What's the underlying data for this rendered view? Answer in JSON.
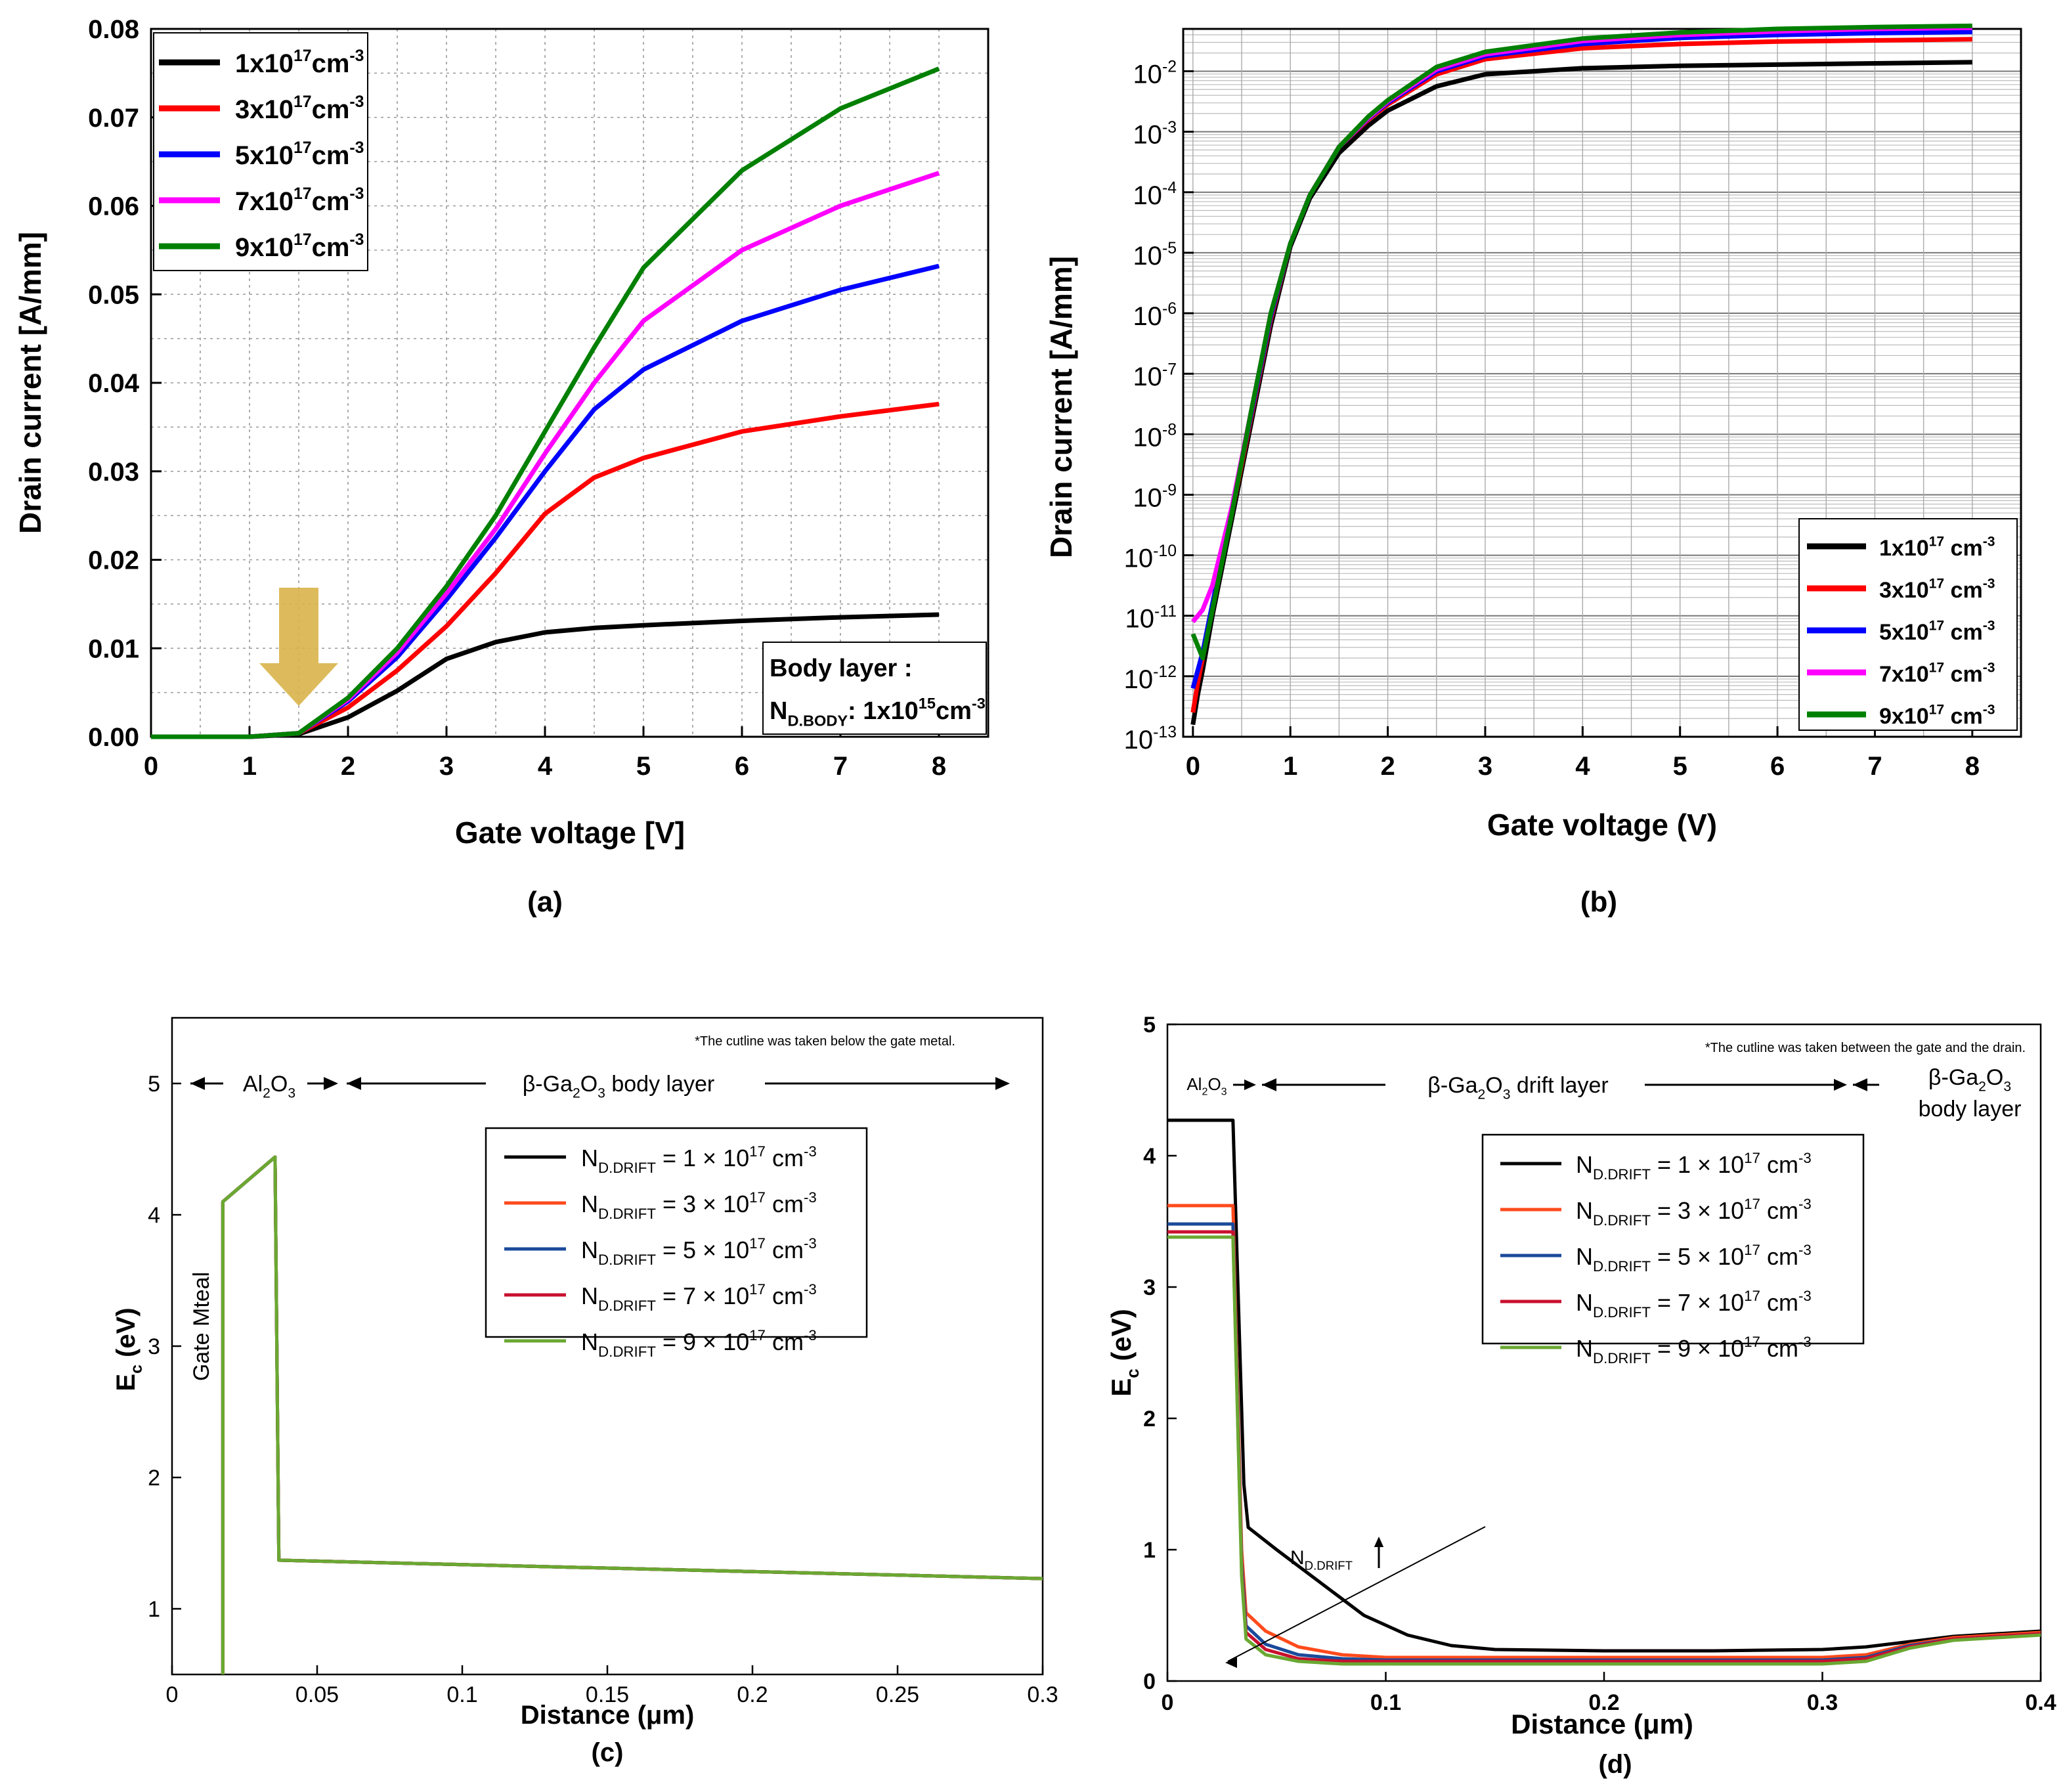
{
  "chart_data": [
    {
      "id": "a",
      "type": "line",
      "caption": "(a)",
      "xlabel": "Gate voltage [V]",
      "ylabel": "Drain current [A/mm]",
      "xlim": [
        0,
        8.5
      ],
      "ylim": [
        0,
        0.08
      ],
      "xticks": [
        "0",
        "1",
        "2",
        "3",
        "4",
        "5",
        "6",
        "7",
        "8"
      ],
      "yticks": [
        "0.00",
        "0.01",
        "0.02",
        "0.03",
        "0.04",
        "0.05",
        "0.06",
        "0.07",
        "0.08"
      ],
      "grid": true,
      "legend_position": "top-left",
      "x": [
        0,
        1,
        1.5,
        2,
        2.5,
        3,
        3.5,
        4,
        4.5,
        5,
        6,
        7,
        8
      ],
      "series": [
        {
          "name": "1x10",
          "sup": "17",
          "unit": "cm",
          "unit_sup": "-3",
          "color": "#000000",
          "values": [
            0,
            0,
            0.0003,
            0.0022,
            0.0052,
            0.0088,
            0.0107,
            0.0118,
            0.0123,
            0.0126,
            0.0131,
            0.0135,
            0.0138
          ]
        },
        {
          "name": "3x10",
          "sup": "17",
          "unit": "cm",
          "unit_sup": "-3",
          "color": "#ff0000",
          "values": [
            0,
            0,
            0.0004,
            0.0033,
            0.0075,
            0.0125,
            0.0185,
            0.0252,
            0.0293,
            0.0315,
            0.0345,
            0.0362,
            0.0376
          ]
        },
        {
          "name": "5x10",
          "sup": "17",
          "unit": "cm",
          "unit_sup": "-3",
          "color": "#0000ff",
          "values": [
            0,
            0,
            0.0004,
            0.004,
            0.009,
            0.0155,
            0.0225,
            0.03,
            0.037,
            0.0415,
            0.047,
            0.0505,
            0.0532
          ]
        },
        {
          "name": "7x10",
          "sup": "17",
          "unit": "cm",
          "unit_sup": "-3",
          "color": "#ff00ff",
          "values": [
            0,
            0,
            0.0004,
            0.0042,
            0.0095,
            0.0162,
            0.0235,
            0.032,
            0.04,
            0.047,
            0.055,
            0.06,
            0.0637
          ]
        },
        {
          "name": "9x10",
          "sup": "17",
          "unit": "cm",
          "unit_sup": "-3",
          "color": "#008000",
          "values": [
            0,
            0,
            0.0004,
            0.0044,
            0.01,
            0.017,
            0.025,
            0.0345,
            0.044,
            0.053,
            0.064,
            0.071,
            0.0755
          ]
        }
      ],
      "annotation_box": {
        "line1": "Body layer :",
        "n": "N",
        "n_sub": "D.BODY",
        "mid": ": 1x10",
        "sup": "15",
        "unit": "cm",
        "unit_sup": "-3"
      },
      "arrow_color": "#d9b44a"
    },
    {
      "id": "b",
      "type": "line",
      "yscale": "log",
      "caption": "(b)",
      "xlabel": "Gate voltage (V)",
      "ylabel": "Drain current [A/mm]",
      "xlim": [
        -0.1,
        8.5
      ],
      "ylim_exp": [
        -13,
        -1.3
      ],
      "xticks": [
        "0",
        "1",
        "2",
        "3",
        "4",
        "5",
        "6",
        "7",
        "8"
      ],
      "ytick_exponents": [
        "-13",
        "-12",
        "-11",
        "-10",
        "-9",
        "-8",
        "-7",
        "-6",
        "-5",
        "-4",
        "-3",
        "-2"
      ],
      "ytick_base": "10",
      "grid": true,
      "legend_position": "bottom-right",
      "x": [
        0,
        0.05,
        0.1,
        0.2,
        0.4,
        0.6,
        0.8,
        1,
        1.2,
        1.5,
        1.8,
        2,
        2.5,
        3,
        4,
        5,
        6,
        7,
        8
      ],
      "series": [
        {
          "name": "1x10",
          "sup": "17",
          "unit": "cm",
          "unit_sup": "-3",
          "color": "#000000",
          "logvalues": [
            -12.8,
            -12.3,
            -11.9,
            -11.0,
            -9.4,
            -7.8,
            -6.2,
            -4.9,
            -4.1,
            -3.35,
            -2.9,
            -2.65,
            -2.25,
            -2.05,
            -1.95,
            -1.91,
            -1.89,
            -1.87,
            -1.85
          ]
        },
        {
          "name": "3x10",
          "sup": "17",
          "unit": "cm",
          "unit_sup": "-3",
          "color": "#ff0000",
          "logvalues": [
            -12.6,
            -12.1,
            -11.7,
            -10.9,
            -9.3,
            -7.7,
            -6.1,
            -4.85,
            -4.05,
            -3.25,
            -2.8,
            -2.55,
            -2.05,
            -1.8,
            -1.62,
            -1.55,
            -1.51,
            -1.49,
            -1.47
          ]
        },
        {
          "name": "5x10",
          "sup": "17",
          "unit": "cm",
          "unit_sup": "-3",
          "color": "#0000ff",
          "logvalues": [
            -12.2,
            -11.9,
            -11.6,
            -10.8,
            -9.25,
            -7.65,
            -6.05,
            -4.85,
            -4.05,
            -3.25,
            -2.78,
            -2.52,
            -2.0,
            -1.75,
            -1.55,
            -1.45,
            -1.4,
            -1.37,
            -1.35
          ]
        },
        {
          "name": "7x10",
          "sup": "17",
          "unit": "cm",
          "unit_sup": "-3",
          "color": "#ff00ff",
          "logvalues": [
            -11.1,
            -11.0,
            -10.9,
            -10.5,
            -9.2,
            -7.6,
            -6.0,
            -4.85,
            -4.05,
            -3.25,
            -2.77,
            -2.5,
            -1.97,
            -1.72,
            -1.5,
            -1.4,
            -1.34,
            -1.3,
            -1.28
          ]
        },
        {
          "name": "9x10",
          "sup": "17",
          "unit": "cm",
          "unit_sup": "-3",
          "color": "#008000",
          "logvalues": [
            -11.3,
            -11.5,
            -11.7,
            -10.9,
            -9.3,
            -7.6,
            -6.0,
            -4.85,
            -4.05,
            -3.25,
            -2.75,
            -2.48,
            -1.93,
            -1.68,
            -1.46,
            -1.36,
            -1.3,
            -1.27,
            -1.25
          ]
        }
      ]
    },
    {
      "id": "c",
      "type": "line",
      "caption": "(c)",
      "xlabel": "Distance (μm)",
      "ylabel": "E",
      "ylabel_sub": "c",
      "ylabel_suffix": " (eV)",
      "xlim": [
        0,
        0.3
      ],
      "ylim": [
        0.5,
        5.5
      ],
      "xticks": [
        "0",
        "0.05",
        "0.1",
        "0.15",
        "0.2",
        "0.25",
        "0.3"
      ],
      "yticks": [
        "1",
        "2",
        "3",
        "4",
        "5"
      ],
      "grid": false,
      "legend_position": "top-right",
      "note": "*The cutline was taken below the gate metal.",
      "region_labels": {
        "oxide": "Al",
        "oxide_sub1": "2",
        "oxide_mid": "O",
        "oxide_sub2": "3",
        "body_a": "β-Ga",
        "body_sub1": "2",
        "body_b": "O",
        "body_sub2": "3",
        "body_c": " body layer",
        "gate": "Gate Mteal"
      },
      "series": [
        {
          "name_main": "N",
          "name_sub": "D.DRIFT",
          "name_eq": " = 1 × 10",
          "name_sup": "17",
          "name_unit": " cm",
          "name_unit_sup": "-3",
          "color": "#000000",
          "x": [
            0.0175,
            0.0175,
            0.0355,
            0.0368,
            0.3
          ],
          "y": [
            0.5,
            4.1,
            4.44,
            1.37,
            1.23
          ]
        },
        {
          "name_main": "N",
          "name_sub": "D.DRIFT",
          "name_eq": " = 3 × 10",
          "name_sup": "17",
          "name_unit": " cm",
          "name_unit_sup": "-3",
          "color": "#ff4a1c",
          "x": [
            0.0175,
            0.0175,
            0.0355,
            0.0368,
            0.3
          ],
          "y": [
            0.5,
            4.1,
            4.44,
            1.37,
            1.23
          ]
        },
        {
          "name_main": "N",
          "name_sub": "D.DRIFT",
          "name_eq": " = 5 × 10",
          "name_sup": "17",
          "name_unit": " cm",
          "name_unit_sup": "-3",
          "color": "#1a4a9a",
          "x": [
            0.0175,
            0.0175,
            0.0355,
            0.0368,
            0.3
          ],
          "y": [
            0.5,
            4.1,
            4.44,
            1.37,
            1.23
          ]
        },
        {
          "name_main": "N",
          "name_sub": "D.DRIFT",
          "name_eq": " = 7 × 10",
          "name_sup": "17",
          "name_unit": " cm",
          "name_unit_sup": "-3",
          "color": "#c8102e",
          "x": [
            0.0175,
            0.0175,
            0.0355,
            0.0368,
            0.3
          ],
          "y": [
            0.5,
            4.1,
            4.44,
            1.37,
            1.23
          ]
        },
        {
          "name_main": "N",
          "name_sub": "D.DRIFT",
          "name_eq": " = 9 × 10",
          "name_sup": "17",
          "name_unit": " cm",
          "name_unit_sup": "-3",
          "color": "#6aa832",
          "x": [
            0.0175,
            0.0175,
            0.0355,
            0.0368,
            0.3
          ],
          "y": [
            0.5,
            4.1,
            4.44,
            1.37,
            1.23
          ]
        }
      ]
    },
    {
      "id": "d",
      "type": "line",
      "caption": "(d)",
      "xlabel": "Distance (μm)",
      "ylabel": "E",
      "ylabel_sub": "c",
      "ylabel_suffix": " (eV)",
      "xlim": [
        0,
        0.4
      ],
      "ylim": [
        0,
        5
      ],
      "xticks": [
        "0",
        "0.1",
        "0.2",
        "0.3",
        "0.4"
      ],
      "yticks": [
        "0",
        "1",
        "2",
        "3",
        "4",
        "5"
      ],
      "grid": false,
      "legend_position": "top-center",
      "note": "*The cutline was taken between the gate and the drain.",
      "region_labels": {
        "oxide": "Al",
        "oxide_sub1": "2",
        "oxide_mid": "O",
        "oxide_sub2": "3",
        "drift_a": "β-Ga",
        "drift_sub1": "2",
        "drift_b": "O",
        "drift_sub2": "3",
        "drift_c": " drift layer",
        "body_a": "β-Ga",
        "body_sub1": "2",
        "body_b": "O",
        "body_sub2": "3",
        "body_c": "body layer"
      },
      "annotation": {
        "n": "N",
        "n_sub": "D.DRIFT"
      },
      "series": [
        {
          "name_main": "N",
          "name_sub": "D.DRIFT",
          "name_eq": " = 1 × 10",
          "name_sup": "17",
          "name_unit": " cm",
          "name_unit_sup": "-3",
          "color": "#000000",
          "x": [
            0,
            0.03,
            0.035,
            0.037,
            0.05,
            0.07,
            0.09,
            0.11,
            0.13,
            0.15,
            0.2,
            0.25,
            0.3,
            0.32,
            0.34,
            0.36,
            0.4
          ],
          "y": [
            4.27,
            4.27,
            1.5,
            1.17,
            1.0,
            0.75,
            0.5,
            0.35,
            0.27,
            0.24,
            0.23,
            0.23,
            0.24,
            0.26,
            0.3,
            0.34,
            0.38
          ]
        },
        {
          "name_main": "N",
          "name_sub": "D.DRIFT",
          "name_eq": " = 3 × 10",
          "name_sup": "17",
          "name_unit": " cm",
          "name_unit_sup": "-3",
          "color": "#ff4a1c",
          "x": [
            0,
            0.03,
            0.034,
            0.036,
            0.045,
            0.06,
            0.08,
            0.1,
            0.15,
            0.2,
            0.25,
            0.3,
            0.32,
            0.34,
            0.36,
            0.4
          ],
          "y": [
            3.62,
            3.62,
            1.0,
            0.52,
            0.38,
            0.26,
            0.2,
            0.18,
            0.18,
            0.18,
            0.18,
            0.18,
            0.2,
            0.28,
            0.33,
            0.37
          ]
        },
        {
          "name_main": "N",
          "name_sub": "D.DRIFT",
          "name_eq": " = 5 × 10",
          "name_sup": "17",
          "name_unit": " cm",
          "name_unit_sup": "-3",
          "color": "#1a4a9a",
          "x": [
            0,
            0.03,
            0.034,
            0.036,
            0.045,
            0.06,
            0.08,
            0.1,
            0.15,
            0.2,
            0.25,
            0.3,
            0.32,
            0.34,
            0.36,
            0.4
          ],
          "y": [
            3.48,
            3.48,
            0.9,
            0.42,
            0.28,
            0.2,
            0.17,
            0.16,
            0.16,
            0.16,
            0.16,
            0.16,
            0.18,
            0.27,
            0.32,
            0.36
          ]
        },
        {
          "name_main": "N",
          "name_sub": "D.DRIFT",
          "name_eq": " = 7 × 10",
          "name_sup": "17",
          "name_unit": " cm",
          "name_unit_sup": "-3",
          "color": "#c8102e",
          "x": [
            0,
            0.03,
            0.034,
            0.036,
            0.045,
            0.06,
            0.08,
            0.1,
            0.15,
            0.2,
            0.25,
            0.3,
            0.32,
            0.34,
            0.36,
            0.4
          ],
          "y": [
            3.42,
            3.42,
            0.85,
            0.37,
            0.24,
            0.17,
            0.15,
            0.15,
            0.15,
            0.15,
            0.15,
            0.15,
            0.17,
            0.26,
            0.32,
            0.36
          ]
        },
        {
          "name_main": "N",
          "name_sub": "D.DRIFT",
          "name_eq": " = 9 × 10",
          "name_sup": "17",
          "name_unit": " cm",
          "name_unit_sup": "-3",
          "color": "#6aa832",
          "x": [
            0,
            0.03,
            0.034,
            0.036,
            0.045,
            0.06,
            0.08,
            0.1,
            0.15,
            0.2,
            0.25,
            0.3,
            0.32,
            0.34,
            0.36,
            0.4
          ],
          "y": [
            3.38,
            3.38,
            0.8,
            0.32,
            0.2,
            0.15,
            0.13,
            0.13,
            0.13,
            0.13,
            0.13,
            0.13,
            0.15,
            0.25,
            0.31,
            0.35
          ]
        }
      ]
    }
  ]
}
